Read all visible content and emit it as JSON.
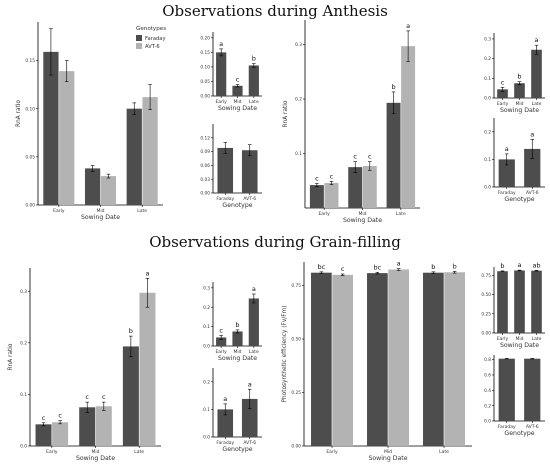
{
  "titles": {
    "anthesis": "Observations during Anthesis",
    "grain": "Observations during Grain-filling"
  },
  "colors": {
    "faraday": "#4d4d4d",
    "avt6": "#b3b3b3",
    "axis": "#000000",
    "text": "#333333"
  },
  "legend": {
    "title": "Genotypes",
    "items": [
      "Faraday",
      "AVT-6"
    ]
  },
  "chart_data": [
    {
      "id": "a1",
      "type": "bar",
      "xlabel": "Sowing Date",
      "ylabel": "RnA ratio",
      "categories": [
        "Early",
        "Mid",
        "Late"
      ],
      "ylim": [
        0,
        0.19
      ],
      "ticks": [
        0.0,
        0.05,
        0.1,
        0.15
      ],
      "tick_labels": [
        "0.00",
        "0.05",
        "0.10",
        "0.15"
      ],
      "series": [
        {
          "name": "Faraday",
          "values": [
            0.159,
            0.038,
            0.1
          ],
          "errors": [
            0.024,
            0.003,
            0.006
          ]
        },
        {
          "name": "AVT-6",
          "values": [
            0.139,
            0.03,
            0.112
          ],
          "errors": [
            0.011,
            0.002,
            0.013
          ]
        }
      ]
    },
    {
      "id": "a2",
      "type": "bar",
      "xlabel": "Sowing Date",
      "ylabel": "",
      "categories": [
        "Early",
        "Mid",
        "Late"
      ],
      "ylim": [
        0,
        0.22
      ],
      "ticks": [
        0.0,
        0.05,
        0.1,
        0.15,
        0.2
      ],
      "tick_labels": [
        "0.00",
        "0.05",
        "0.10",
        "0.15",
        "0.20"
      ],
      "series": [
        {
          "values": [
            0.15,
            0.035,
            0.105
          ],
          "errors": [
            0.012,
            0.004,
            0.006
          ],
          "letters": [
            "a",
            "c",
            "b"
          ]
        }
      ]
    },
    {
      "id": "a3",
      "type": "bar",
      "xlabel": "Genotype",
      "ylabel": "",
      "categories": [
        "Faraday",
        "AVT-6"
      ],
      "ylim": [
        0,
        0.15
      ],
      "ticks": [
        0.0,
        0.03,
        0.06,
        0.09,
        0.12
      ],
      "tick_labels": [
        "0.00",
        "0.03",
        "0.06",
        "0.09",
        "0.12"
      ],
      "series": [
        {
          "values": [
            0.098,
            0.093
          ],
          "errors": [
            0.012,
            0.012
          ]
        }
      ]
    },
    {
      "id": "a4",
      "type": "bar",
      "xlabel": "Sowing Date",
      "ylabel": "RnA ratio",
      "categories": [
        "Early",
        "Mid",
        "Late"
      ],
      "ylim": [
        0,
        0.345
      ],
      "ticks": [
        0.1,
        0.2,
        0.3
      ],
      "tick_labels": [
        "0.1",
        "0.2",
        "0.3"
      ],
      "series": [
        {
          "name": "Faraday",
          "values": [
            0.042,
            0.075,
            0.193
          ],
          "errors": [
            0.003,
            0.01,
            0.02
          ],
          "letters": [
            "c",
            "c",
            "b"
          ]
        },
        {
          "name": "AVT-6",
          "values": [
            0.046,
            0.077,
            0.297
          ],
          "errors": [
            0.003,
            0.008,
            0.028
          ],
          "letters": [
            "c",
            "c",
            "a"
          ]
        }
      ]
    },
    {
      "id": "a5",
      "type": "bar",
      "xlabel": "Sowing Date",
      "ylabel": "",
      "categories": [
        "Early",
        "Mid",
        "Late"
      ],
      "ylim": [
        0,
        0.33
      ],
      "ticks": [
        0.0,
        0.1,
        0.2,
        0.3
      ],
      "tick_labels": [
        "0.0",
        "0.1",
        "0.2",
        "0.3"
      ],
      "series": [
        {
          "values": [
            0.044,
            0.075,
            0.245
          ],
          "errors": [
            0.01,
            0.008,
            0.023
          ],
          "letters": [
            "c",
            "b",
            "a"
          ]
        }
      ]
    },
    {
      "id": "a6",
      "type": "bar",
      "xlabel": "Genotype",
      "ylabel": "",
      "categories": [
        "Faraday",
        "AVT-6"
      ],
      "ylim": [
        0,
        0.25
      ],
      "ticks": [
        0.0,
        0.1,
        0.2
      ],
      "tick_labels": [
        "0.0",
        "0.1",
        "0.2"
      ],
      "series": [
        {
          "values": [
            0.1,
            0.138
          ],
          "errors": [
            0.02,
            0.035
          ],
          "letters": [
            "a",
            "a"
          ]
        }
      ]
    },
    {
      "id": "g1",
      "type": "bar",
      "xlabel": "Sowing Date",
      "ylabel": "RnA ratio",
      "categories": [
        "Early",
        "Mid",
        "Late"
      ],
      "ylim": [
        0,
        0.345
      ],
      "ticks": [
        0.0,
        0.1,
        0.2,
        0.3
      ],
      "tick_labels": [
        "0.0",
        "0.1",
        "0.2",
        "0.3"
      ],
      "series": [
        {
          "name": "Faraday",
          "values": [
            0.042,
            0.075,
            0.193
          ],
          "errors": [
            0.003,
            0.01,
            0.02
          ],
          "letters": [
            "c",
            "c",
            "b"
          ]
        },
        {
          "name": "AVT-6",
          "values": [
            0.046,
            0.077,
            0.297
          ],
          "errors": [
            0.003,
            0.008,
            0.028
          ],
          "letters": [
            "c",
            "c",
            "a"
          ]
        }
      ]
    },
    {
      "id": "g2",
      "type": "bar",
      "xlabel": "Sowing Date",
      "ylabel": "",
      "categories": [
        "Early",
        "Mid",
        "Late"
      ],
      "ylim": [
        0,
        0.33
      ],
      "ticks": [
        0.0,
        0.1,
        0.2,
        0.3
      ],
      "tick_labels": [
        "0.0",
        "0.1",
        "0.2",
        "0.3"
      ],
      "series": [
        {
          "values": [
            0.044,
            0.075,
            0.245
          ],
          "errors": [
            0.01,
            0.008,
            0.023
          ],
          "letters": [
            "c",
            "b",
            "a"
          ]
        }
      ]
    },
    {
      "id": "g3",
      "type": "bar",
      "xlabel": "Genotype",
      "ylabel": "",
      "categories": [
        "Faraday",
        "AVT-6"
      ],
      "ylim": [
        0,
        0.25
      ],
      "ticks": [
        0.0,
        0.1,
        0.2
      ],
      "tick_labels": [
        "0.0",
        "0.1",
        "0.2"
      ],
      "series": [
        {
          "values": [
            0.1,
            0.138
          ],
          "errors": [
            0.02,
            0.035
          ],
          "letters": [
            "a",
            "a"
          ]
        }
      ]
    },
    {
      "id": "g4",
      "type": "bar",
      "xlabel": "Sowing Date",
      "ylabel": "Photosynthetic efficiency (Fv/Fm)",
      "categories": [
        "Early",
        "Mid",
        "Late"
      ],
      "ylim": [
        0,
        0.86
      ],
      "ticks": [
        0.0,
        0.25,
        0.5,
        0.75
      ],
      "tick_labels": [
        "0.00",
        "0.25",
        "0.50",
        "0.75"
      ],
      "series": [
        {
          "name": "Faraday",
          "values": [
            0.81,
            0.808,
            0.81
          ],
          "errors": [
            0.004,
            0.004,
            0.004
          ],
          "letters": [
            "bc",
            "bc",
            "b"
          ]
        },
        {
          "name": "AVT-6",
          "values": [
            0.8,
            0.825,
            0.812
          ],
          "errors": [
            0.004,
            0.004,
            0.004
          ],
          "letters": [
            "c",
            "a",
            "b"
          ]
        }
      ]
    },
    {
      "id": "g5",
      "type": "bar",
      "xlabel": "Sowing Date",
      "ylabel": "",
      "categories": [
        "Early",
        "Mid",
        "Late"
      ],
      "ylim": [
        0,
        0.86
      ],
      "ticks": [
        0.0,
        0.25,
        0.5,
        0.75
      ],
      "tick_labels": [
        "0.00",
        "0.25",
        "0.50",
        "0.75"
      ],
      "series": [
        {
          "values": [
            0.805,
            0.815,
            0.812
          ],
          "errors": [
            0.004,
            0.004,
            0.004
          ],
          "letters": [
            "b",
            "a",
            "ab"
          ]
        }
      ]
    },
    {
      "id": "g6",
      "type": "bar",
      "xlabel": "Genotype",
      "ylabel": "",
      "categories": [
        "Faraday",
        "AVT-6"
      ],
      "ylim": [
        0,
        0.86
      ],
      "ticks": [
        0.0,
        0.2,
        0.4,
        0.6,
        0.8
      ],
      "tick_labels": [
        "0.0",
        "0.2",
        "0.4",
        "0.6",
        "0.8"
      ],
      "series": [
        {
          "values": [
            0.812,
            0.812
          ],
          "errors": [
            0.003,
            0.003
          ]
        }
      ]
    }
  ]
}
